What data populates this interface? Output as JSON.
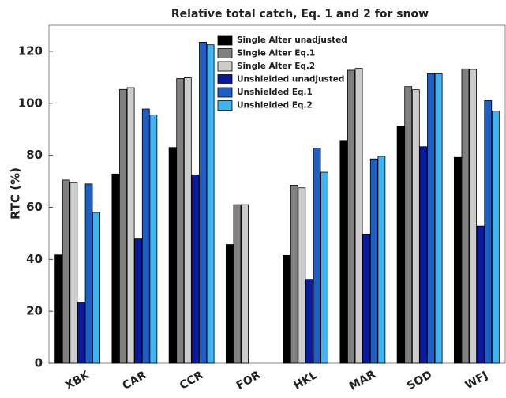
{
  "chart_data": {
    "type": "bar",
    "title": "Relative  total catch, Eq. 1 and 2 for snow",
    "y_label": "RTC (%)",
    "categories": [
      "XBK",
      "CAR",
      "CCR",
      "FOR",
      "HKL",
      "MAR",
      "SOD",
      "WFJ"
    ],
    "series": [
      {
        "name": "Single Alter  unadjusted",
        "color": "#000000",
        "values": [
          41.7,
          72.8,
          83,
          45.7,
          41.5,
          85.7,
          91.3,
          79.2
        ]
      },
      {
        "name": "Single Alter Eq.1",
        "color": "#808080",
        "values": [
          70.5,
          105.3,
          109.5,
          61,
          68.5,
          112.7,
          106.4,
          113.2
        ]
      },
      {
        "name": "Single Alter Eq.2",
        "color": "#cccccc",
        "values": [
          69.5,
          106,
          109.8,
          61,
          67.5,
          113.4,
          105.2,
          113
        ]
      },
      {
        "name": "Unshielded  unadjusted",
        "color": "#0a1a9e",
        "values": [
          23.5,
          47.8,
          72.5,
          null,
          32.3,
          49.7,
          83.3,
          52.8
        ]
      },
      {
        "name": "Unshielded Eq.1",
        "color": "#1f5fc4",
        "values": [
          69,
          97.8,
          123.5,
          null,
          82.8,
          78.6,
          111.4,
          101
        ]
      },
      {
        "name": "Unshielded Eq.2",
        "color": "#40b4f0",
        "values": [
          58,
          95.5,
          122.5,
          null,
          73.5,
          79.6,
          111.4,
          97
        ]
      }
    ],
    "ylim": [
      0,
      130
    ],
    "yticks": [
      0,
      20,
      40,
      60,
      80,
      100,
      120
    ],
    "grid": false
  }
}
